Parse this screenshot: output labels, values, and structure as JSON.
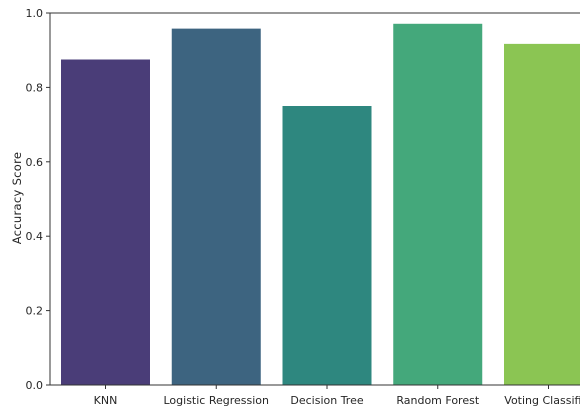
{
  "chart_data": {
    "type": "bar",
    "title": "",
    "xlabel": "",
    "ylabel": "Accuracy Score",
    "categories": [
      "KNN",
      "Logistic Regression",
      "Decision Tree",
      "Random Forest",
      "Voting Classifier"
    ],
    "values": [
      0.875,
      0.958,
      0.75,
      0.971,
      0.917
    ],
    "colors": [
      "#4a3d78",
      "#3d6480",
      "#2e877f",
      "#44a87b",
      "#8bc553"
    ],
    "ylim": [
      0,
      1.0
    ],
    "yticks": [
      "0.0",
      "0.2",
      "0.4",
      "0.6",
      "0.8",
      "1.0"
    ],
    "ytick_values": [
      0,
      0.2,
      0.4,
      0.6,
      0.8,
      1.0
    ],
    "grid": false,
    "legend": "none"
  }
}
